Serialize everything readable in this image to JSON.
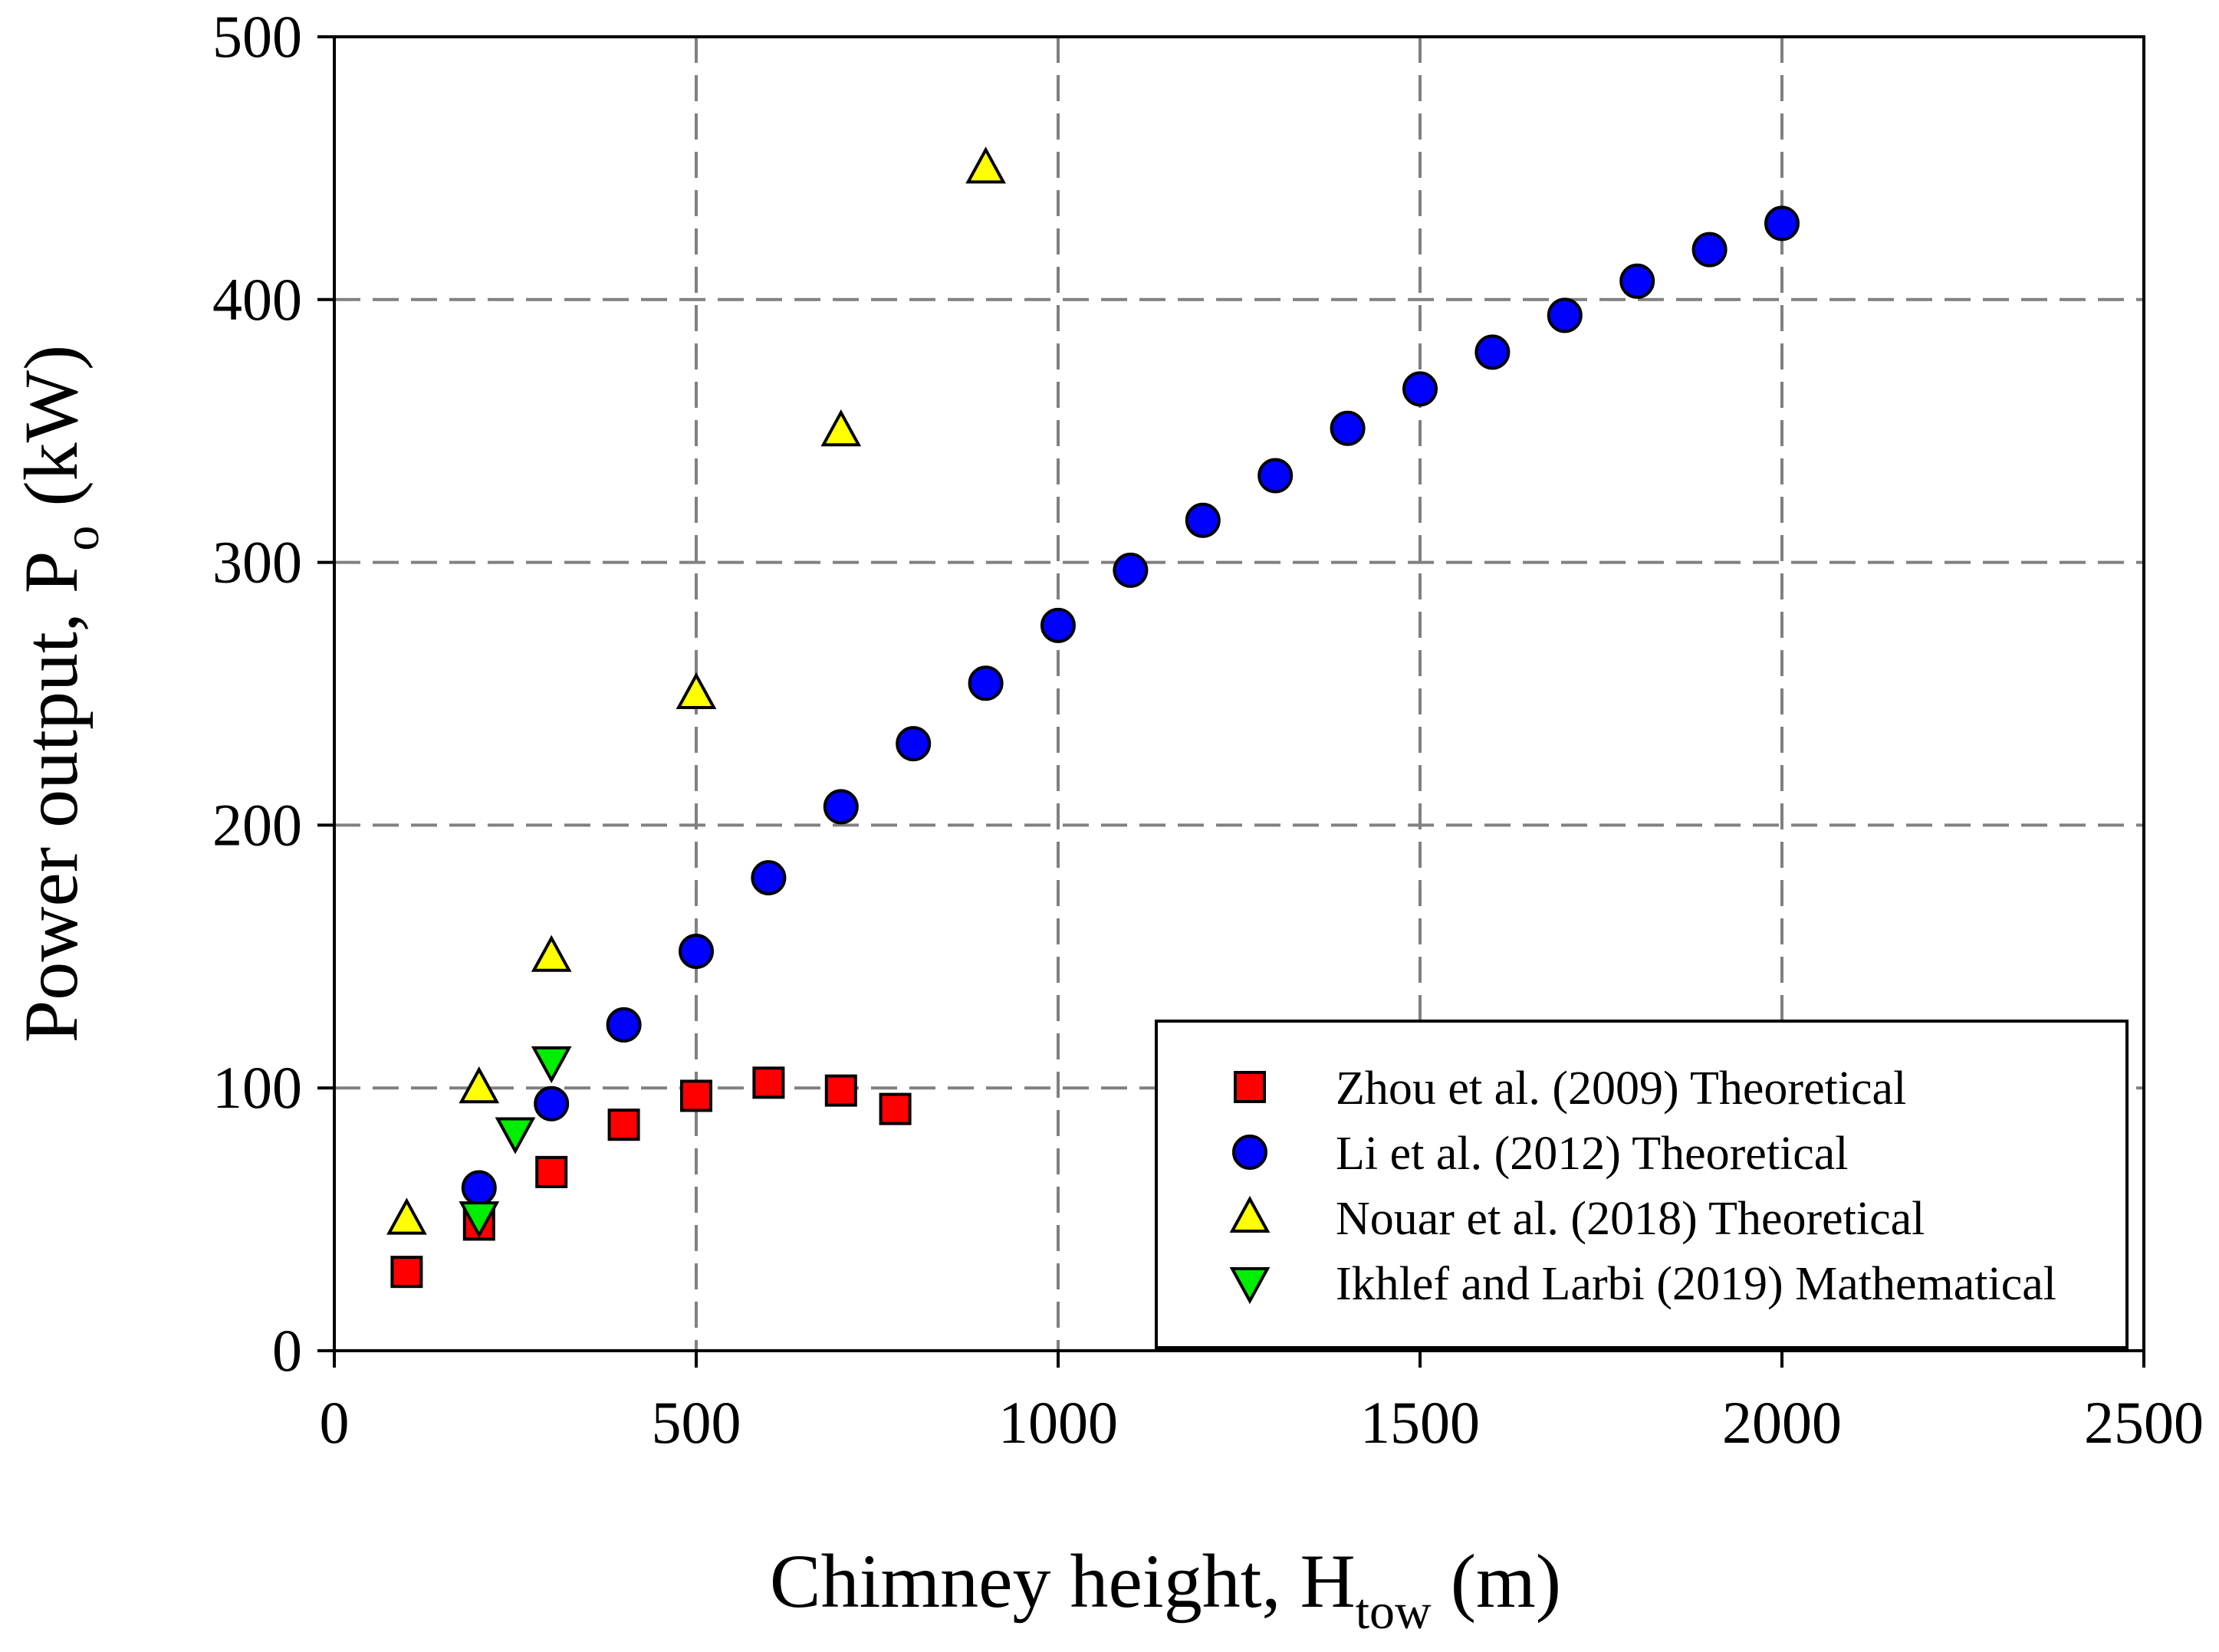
{
  "chart_data": {
    "type": "scatter",
    "title": "",
    "xlabel": {
      "main": "Chimney height, H",
      "sub": "tow",
      "unit": " (m)"
    },
    "ylabel": {
      "main": "Power output, P",
      "sub": "o",
      "unit": " (kW)"
    },
    "xlim": [
      0,
      2500
    ],
    "ylim": [
      0,
      500
    ],
    "xticks": [
      0,
      500,
      1000,
      1500,
      2000,
      2500
    ],
    "yticks": [
      0,
      100,
      200,
      300,
      400,
      500
    ],
    "grid": true,
    "legend_position": "bottom-right",
    "series": [
      {
        "name": "Zhou et al. (2009) Theoretical",
        "marker": "square",
        "color": "#ff0000",
        "x": [
          100,
          200,
          300,
          400,
          500,
          600,
          700,
          775
        ],
        "y": [
          30,
          48,
          68,
          86,
          97,
          102,
          99,
          92
        ]
      },
      {
        "name": "Li et al. (2012) Theoretical",
        "marker": "circle",
        "color": "#0000ff",
        "x": [
          200,
          300,
          400,
          500,
          600,
          700,
          800,
          900,
          1000,
          1100,
          1200,
          1300,
          1400,
          1500,
          1600,
          1700,
          1800,
          1900,
          2000
        ],
        "y": [
          62,
          94,
          124,
          152,
          180,
          207,
          231,
          254,
          276,
          297,
          316,
          333,
          351,
          366,
          380,
          394,
          407,
          419,
          429
        ]
      },
      {
        "name": "Nouar et al. (2018) Theoretical",
        "marker": "triangle-up",
        "color": "#ffff00",
        "x": [
          100,
          200,
          300,
          500,
          700,
          900
        ],
        "y": [
          50,
          100,
          150,
          250,
          350,
          450
        ]
      },
      {
        "name": "Ikhlef and Larbi (2019) Mathematical",
        "marker": "triangle-down",
        "color": "#00ee00",
        "x": [
          200,
          250,
          300
        ],
        "y": [
          51,
          83,
          110
        ]
      }
    ]
  }
}
